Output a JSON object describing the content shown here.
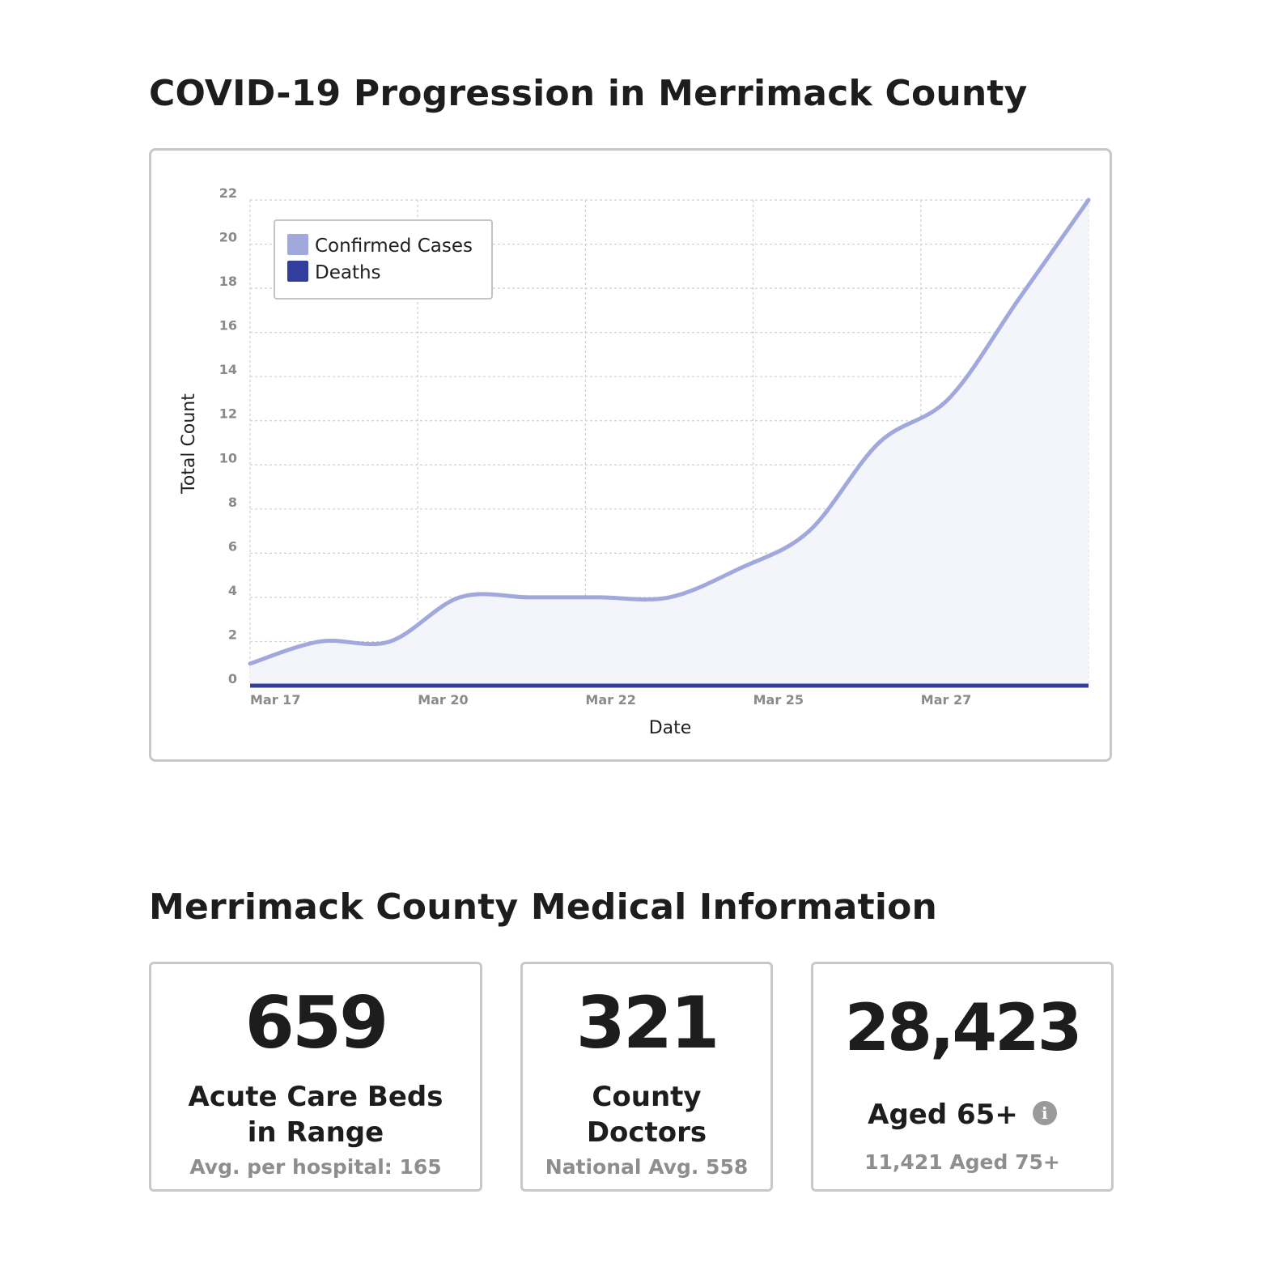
{
  "chart_section": {
    "title": "COVID-19 Progression in Merrimack County"
  },
  "chart_data": {
    "type": "area",
    "xlabel": "Date",
    "ylabel": "Total Count",
    "ylim": [
      0,
      22
    ],
    "yticks": [
      0,
      2,
      4,
      6,
      8,
      10,
      12,
      14,
      16,
      18,
      20,
      22
    ],
    "x_range": [
      17,
      29
    ],
    "xticks": [
      {
        "day": 17,
        "label": "Mar 17"
      },
      {
        "day": 19.4,
        "label": "Mar 20"
      },
      {
        "day": 21.8,
        "label": "Mar 22"
      },
      {
        "day": 24.2,
        "label": "Mar 25"
      },
      {
        "day": 26.6,
        "label": "Mar 27"
      }
    ],
    "grid": true,
    "legend_position": "top-left",
    "series": [
      {
        "name": "Confirmed Cases",
        "color": "#a1a8dc",
        "fill": "#f4f5fb",
        "points": [
          [
            17,
            1
          ],
          [
            18,
            2
          ],
          [
            19,
            2
          ],
          [
            20,
            4
          ],
          [
            21,
            4
          ],
          [
            22,
            4
          ],
          [
            23,
            4
          ],
          [
            24,
            5.3
          ],
          [
            25,
            7
          ],
          [
            26,
            11
          ],
          [
            27,
            13
          ],
          [
            28,
            17.5
          ],
          [
            29,
            22
          ]
        ]
      },
      {
        "name": "Deaths",
        "color": "#2f3f9b",
        "points": [
          [
            17,
            0
          ],
          [
            18,
            0
          ],
          [
            19,
            0
          ],
          [
            20,
            0
          ],
          [
            21,
            0
          ],
          [
            22,
            0
          ],
          [
            23,
            0
          ],
          [
            24,
            0
          ],
          [
            25,
            0
          ],
          [
            26,
            0
          ],
          [
            27,
            0
          ],
          [
            28,
            0
          ],
          [
            29,
            0
          ]
        ]
      }
    ]
  },
  "medical_section": {
    "title": "Merrimack County Medical Information",
    "cards": [
      {
        "value": "659",
        "label_line1": "Acute Care Beds",
        "label_line2": "in Range",
        "sub": "Avg. per hospital: 165"
      },
      {
        "value": "321",
        "label_line1": "County",
        "label_line2": "Doctors",
        "sub": "National Avg. 558"
      },
      {
        "value": "28,423",
        "label": "Aged 65+",
        "info_icon": "info-icon",
        "info_glyph": "i",
        "sub": "11,421 Aged 75+"
      }
    ]
  }
}
